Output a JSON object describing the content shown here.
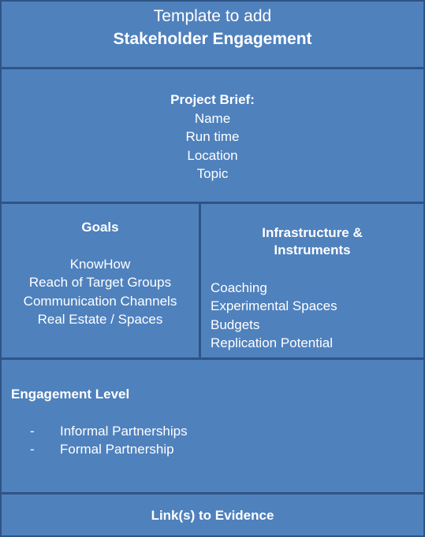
{
  "header": {
    "line1": "Template to add",
    "line2": "Stakeholder Engagement"
  },
  "project_brief": {
    "title": "Project Brief:",
    "items": [
      "Name",
      "Run time",
      "Location",
      "Topic"
    ]
  },
  "goals": {
    "title": "Goals",
    "items": [
      "KnowHow",
      "Reach of Target Groups",
      "Communication Channels",
      "Real Estate / Spaces"
    ]
  },
  "infrastructure": {
    "title_line1": "Infrastructure &",
    "title_line2": "Instruments",
    "items": [
      "Coaching",
      "Experimental Spaces",
      "Budgets",
      "Replication Potential"
    ]
  },
  "engagement": {
    "title": "Engagement Level",
    "bullet": "-",
    "items": [
      "Informal Partnerships",
      "Formal Partnership"
    ]
  },
  "evidence": {
    "title": "Link(s) to Evidence"
  }
}
